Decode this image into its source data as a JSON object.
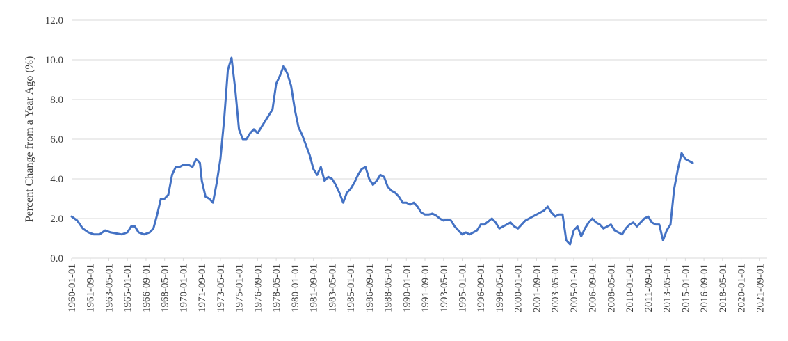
{
  "chart_data": {
    "type": "line",
    "title": "",
    "xlabel": "",
    "ylabel": "Percent Change from a Year Ago (%)",
    "ylim": [
      0,
      12
    ],
    "y_ticks": [
      "0.0",
      "2.0",
      "4.0",
      "6.0",
      "8.0",
      "10.0",
      "12.0"
    ],
    "x_tick_labels": [
      "1960-01-01",
      "1961-09-01",
      "1963-05-01",
      "1965-01-01",
      "1966-09-01",
      "1968-05-01",
      "1970-01-01",
      "1971-09-01",
      "1973-05-01",
      "1975-01-01",
      "1976-09-01",
      "1978-05-01",
      "1980-01-01",
      "1981-09-01",
      "1983-05-01",
      "1985-01-01",
      "1986-09-01",
      "1988-05-01",
      "1990-01-01",
      "1991-09-01",
      "1993-05-01",
      "1995-01-01",
      "1996-09-01",
      "1998-05-01",
      "2000-01-01",
      "2001-09-01",
      "2003-05-01",
      "2005-01-01",
      "2006-09-01",
      "2008-05-01",
      "2010-01-01",
      "2011-09-01",
      "2013-05-01",
      "2015-01-01",
      "2016-09-01",
      "2018-05-01",
      "2020-01-01",
      "2021-09-01"
    ],
    "grid": "horizontal",
    "legend": "none",
    "line_color": "#4472C4",
    "series": [
      {
        "name": "",
        "points": [
          [
            "1960-01",
            2.1
          ],
          [
            "1960-07",
            1.9
          ],
          [
            "1961-01",
            1.5
          ],
          [
            "1961-07",
            1.3
          ],
          [
            "1962-01",
            1.2
          ],
          [
            "1962-07",
            1.2
          ],
          [
            "1963-01",
            1.4
          ],
          [
            "1963-07",
            1.3
          ],
          [
            "1964-01",
            1.25
          ],
          [
            "1964-07",
            1.2
          ],
          [
            "1965-01",
            1.3
          ],
          [
            "1965-05",
            1.6
          ],
          [
            "1965-09",
            1.6
          ],
          [
            "1966-01",
            1.3
          ],
          [
            "1966-07",
            1.2
          ],
          [
            "1967-01",
            1.3
          ],
          [
            "1967-05",
            1.5
          ],
          [
            "1967-09",
            2.2
          ],
          [
            "1968-01",
            3.0
          ],
          [
            "1968-05",
            3.0
          ],
          [
            "1968-09",
            3.2
          ],
          [
            "1969-01",
            4.2
          ],
          [
            "1969-05",
            4.6
          ],
          [
            "1969-09",
            4.6
          ],
          [
            "1970-01",
            4.7
          ],
          [
            "1970-07",
            4.7
          ],
          [
            "1970-11",
            4.6
          ],
          [
            "1971-03",
            5.0
          ],
          [
            "1971-07",
            4.8
          ],
          [
            "1971-09",
            3.9
          ],
          [
            "1972-01",
            3.1
          ],
          [
            "1972-05",
            3.0
          ],
          [
            "1972-09",
            2.8
          ],
          [
            "1973-01",
            3.8
          ],
          [
            "1973-05",
            5.0
          ],
          [
            "1973-09",
            7.0
          ],
          [
            "1974-01",
            9.5
          ],
          [
            "1974-05",
            10.1
          ],
          [
            "1974-09",
            8.5
          ],
          [
            "1975-01",
            6.5
          ],
          [
            "1975-05",
            6.0
          ],
          [
            "1975-09",
            6.0
          ],
          [
            "1976-01",
            6.3
          ],
          [
            "1976-05",
            6.5
          ],
          [
            "1976-09",
            6.3
          ],
          [
            "1977-01",
            6.6
          ],
          [
            "1977-05",
            6.9
          ],
          [
            "1977-09",
            7.2
          ],
          [
            "1978-01",
            7.5
          ],
          [
            "1978-05",
            8.8
          ],
          [
            "1978-09",
            9.2
          ],
          [
            "1979-01",
            9.7
          ],
          [
            "1979-05",
            9.3
          ],
          [
            "1979-09",
            8.7
          ],
          [
            "1980-01",
            7.5
          ],
          [
            "1980-05",
            6.6
          ],
          [
            "1980-09",
            6.2
          ],
          [
            "1981-01",
            5.7
          ],
          [
            "1981-05",
            5.2
          ],
          [
            "1981-09",
            4.5
          ],
          [
            "1982-01",
            4.2
          ],
          [
            "1982-05",
            4.6
          ],
          [
            "1982-09",
            3.9
          ],
          [
            "1983-01",
            4.1
          ],
          [
            "1983-05",
            4.0
          ],
          [
            "1983-09",
            3.7
          ],
          [
            "1984-01",
            3.3
          ],
          [
            "1984-05",
            2.8
          ],
          [
            "1984-09",
            3.3
          ],
          [
            "1985-01",
            3.5
          ],
          [
            "1985-05",
            3.8
          ],
          [
            "1985-09",
            4.2
          ],
          [
            "1986-01",
            4.5
          ],
          [
            "1986-05",
            4.6
          ],
          [
            "1986-09",
            4.0
          ],
          [
            "1987-01",
            3.7
          ],
          [
            "1987-05",
            3.9
          ],
          [
            "1987-09",
            4.2
          ],
          [
            "1988-01",
            4.1
          ],
          [
            "1988-05",
            3.6
          ],
          [
            "1988-09",
            3.4
          ],
          [
            "1989-01",
            3.3
          ],
          [
            "1989-05",
            3.1
          ],
          [
            "1989-09",
            2.8
          ],
          [
            "1990-01",
            2.8
          ],
          [
            "1990-05",
            2.7
          ],
          [
            "1990-09",
            2.8
          ],
          [
            "1991-01",
            2.6
          ],
          [
            "1991-05",
            2.3
          ],
          [
            "1991-09",
            2.2
          ],
          [
            "1992-01",
            2.2
          ],
          [
            "1992-05",
            2.25
          ],
          [
            "1992-09",
            2.15
          ],
          [
            "1993-01",
            2.0
          ],
          [
            "1993-05",
            1.9
          ],
          [
            "1993-09",
            1.95
          ],
          [
            "1994-01",
            1.9
          ],
          [
            "1994-05",
            1.6
          ],
          [
            "1994-09",
            1.4
          ],
          [
            "1995-01",
            1.2
          ],
          [
            "1995-05",
            1.3
          ],
          [
            "1995-09",
            1.2
          ],
          [
            "1996-01",
            1.3
          ],
          [
            "1996-05",
            1.4
          ],
          [
            "1996-09",
            1.7
          ],
          [
            "1997-01",
            1.7
          ],
          [
            "1997-05",
            1.85
          ],
          [
            "1997-09",
            2.0
          ],
          [
            "1998-01",
            1.8
          ],
          [
            "1998-05",
            1.5
          ],
          [
            "1998-09",
            1.6
          ],
          [
            "1999-01",
            1.7
          ],
          [
            "1999-05",
            1.8
          ],
          [
            "1999-09",
            1.6
          ],
          [
            "2000-01",
            1.5
          ],
          [
            "2000-05",
            1.7
          ],
          [
            "2000-09",
            1.9
          ],
          [
            "2001-01",
            2.0
          ],
          [
            "2001-05",
            2.1
          ],
          [
            "2001-09",
            2.2
          ],
          [
            "2002-01",
            2.3
          ],
          [
            "2002-05",
            2.4
          ],
          [
            "2002-09",
            2.6
          ],
          [
            "2003-01",
            2.3
          ],
          [
            "2003-05",
            2.1
          ],
          [
            "2003-09",
            2.2
          ],
          [
            "2004-01",
            2.2
          ],
          [
            "2004-05",
            0.9
          ],
          [
            "2004-09",
            0.7
          ],
          [
            "2005-01",
            1.4
          ],
          [
            "2005-05",
            1.6
          ],
          [
            "2005-09",
            1.1
          ],
          [
            "2006-01",
            1.5
          ],
          [
            "2006-05",
            1.8
          ],
          [
            "2006-09",
            2.0
          ],
          [
            "2007-01",
            1.8
          ],
          [
            "2007-05",
            1.7
          ],
          [
            "2007-09",
            1.5
          ],
          [
            "2008-01",
            1.6
          ],
          [
            "2008-05",
            1.7
          ],
          [
            "2008-09",
            1.4
          ],
          [
            "2009-01",
            1.3
          ],
          [
            "2009-05",
            1.2
          ],
          [
            "2009-09",
            1.5
          ],
          [
            "2010-01",
            1.7
          ],
          [
            "2010-05",
            1.8
          ],
          [
            "2010-09",
            1.6
          ],
          [
            "2011-01",
            1.8
          ],
          [
            "2011-05",
            2.0
          ],
          [
            "2011-09",
            2.1
          ],
          [
            "2012-01",
            1.8
          ],
          [
            "2012-05",
            1.7
          ],
          [
            "2012-09",
            1.7
          ],
          [
            "2013-01",
            0.9
          ],
          [
            "2013-05",
            1.4
          ],
          [
            "2013-09",
            1.7
          ],
          [
            "2014-01",
            3.5
          ],
          [
            "2014-05",
            4.5
          ],
          [
            "2014-09",
            5.3
          ],
          [
            "2015-01",
            5.0
          ],
          [
            "2015-05",
            4.9
          ],
          [
            "2015-09",
            4.8
          ]
        ]
      }
    ]
  }
}
